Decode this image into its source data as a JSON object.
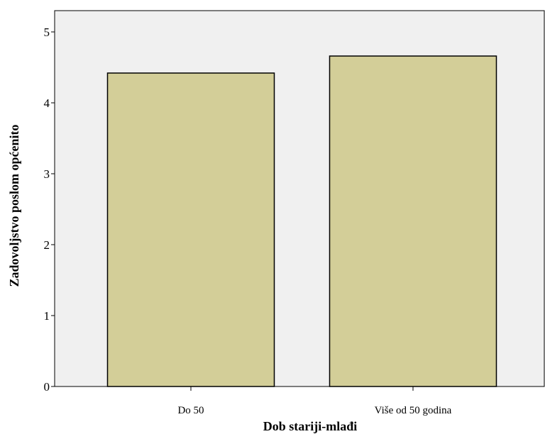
{
  "chart_data": {
    "type": "bar",
    "categories": [
      "Do 50",
      "Više od 50 godina"
    ],
    "values": [
      4.42,
      4.66
    ],
    "xlabel": "Dob stariji-mlađi",
    "ylabel": "Zadovoljstvo poslom općenito",
    "ylim": [
      0,
      5.3
    ],
    "yticks": [
      0,
      1,
      2,
      3,
      4,
      5
    ],
    "grid": false,
    "colors": {
      "plot_background": "#f0f0f0",
      "bar_fill": "#d3ce98",
      "bar_stroke": "#000000"
    }
  }
}
